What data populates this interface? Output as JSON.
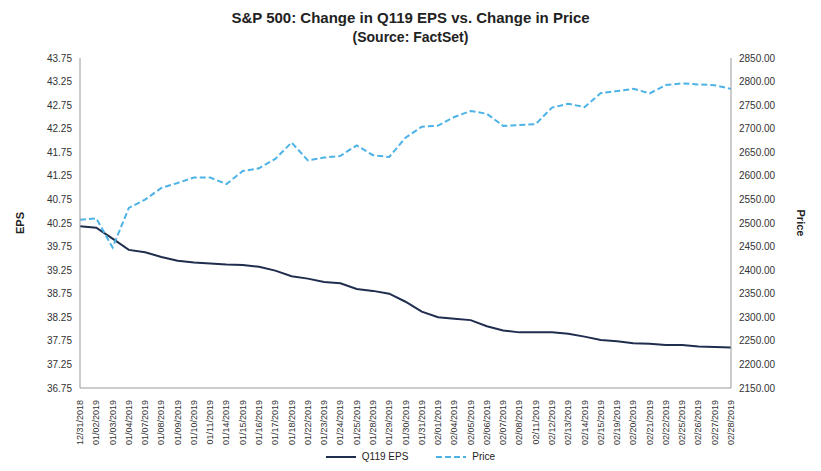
{
  "chart_data": {
    "type": "line",
    "title": "S&P 500: Change in Q119 EPS vs. Change in Price",
    "subtitle": "(Source: FactSet)",
    "y_label": "EPS",
    "y2_label": "Price",
    "x": [
      "12/31/2018",
      "01/02/2019",
      "01/03/2019",
      "01/04/2019",
      "01/07/2019",
      "01/08/2019",
      "01/09/2019",
      "01/10/2019",
      "01/11/2019",
      "01/14/2019",
      "01/15/2019",
      "01/16/2019",
      "01/17/2019",
      "01/18/2019",
      "01/22/2019",
      "01/23/2019",
      "01/24/2019",
      "01/25/2019",
      "01/28/2019",
      "01/29/2019",
      "01/30/2019",
      "01/31/2019",
      "02/01/2019",
      "02/04/2019",
      "02/05/2019",
      "02/06/2019",
      "02/07/2019",
      "02/08/2019",
      "02/11/2019",
      "02/12/2019",
      "02/13/2019",
      "02/14/2019",
      "02/15/2019",
      "02/19/2019",
      "02/20/2019",
      "02/21/2019",
      "02/22/2019",
      "02/25/2019",
      "02/26/2019",
      "02/27/2019",
      "02/28/2019"
    ],
    "series": [
      {
        "name": "Q119 EPS",
        "color": "#1f2d4e",
        "line_style": "solid",
        "axis": "y",
        "values": [
          40.18,
          40.15,
          39.92,
          39.68,
          39.63,
          39.53,
          39.45,
          39.41,
          39.39,
          39.37,
          39.36,
          39.32,
          39.24,
          39.12,
          39.07,
          39.0,
          38.97,
          38.85,
          38.81,
          38.75,
          38.58,
          38.37,
          38.25,
          38.22,
          38.19,
          38.06,
          37.97,
          37.93,
          37.93,
          37.93,
          37.9,
          37.84,
          37.77,
          37.74,
          37.7,
          37.69,
          37.66,
          37.66,
          37.63,
          37.62,
          37.61
        ]
      },
      {
        "name": "Price",
        "color": "#4db3e6",
        "line_style": "dashed",
        "axis": "y2",
        "values": [
          2506.85,
          2510.03,
          2447.89,
          2531.94,
          2549.69,
          2574.41,
          2584.96,
          2596.64,
          2596.26,
          2582.61,
          2610.3,
          2616.1,
          2635.96,
          2670.71,
          2632.9,
          2638.7,
          2642.33,
          2664.76,
          2643.85,
          2640.0,
          2681.05,
          2704.1,
          2706.53,
          2724.87,
          2737.7,
          2731.61,
          2706.05,
          2707.88,
          2709.8,
          2744.73,
          2753.03,
          2745.73,
          2775.6,
          2779.76,
          2784.7,
          2774.88,
          2792.67,
          2796.11,
          2793.9,
          2792.38,
          2784.49
        ]
      }
    ],
    "ylim": [
      36.75,
      43.75
    ],
    "yticks": [
      36.75,
      37.25,
      37.75,
      38.25,
      38.75,
      39.25,
      39.75,
      40.25,
      40.75,
      41.25,
      41.75,
      42.25,
      42.75,
      43.25,
      43.75
    ],
    "y2lim": [
      2150,
      2850
    ],
    "y2ticks": [
      {
        "value": 2150,
        "label": "2150.00"
      },
      {
        "value": 2200,
        "label": "2200.00"
      },
      {
        "value": 2250,
        "label": "2250.00"
      },
      {
        "value": 2300,
        "label": "2300.00"
      },
      {
        "value": 2350,
        "label": "2350.00"
      },
      {
        "value": 2400,
        "label": "2400.00"
      },
      {
        "value": 2450,
        "label": "2450.00"
      },
      {
        "value": 2500,
        "label": "2500.00"
      },
      {
        "value": 2550,
        "label": "2550.00"
      },
      {
        "value": 2600,
        "label": "2600.00"
      },
      {
        "value": 2650,
        "label": "2650.00"
      },
      {
        "value": 2700,
        "label": "2700.00"
      },
      {
        "value": 2750,
        "label": "2750.00"
      },
      {
        "value": 2800,
        "label": "2800.00"
      },
      {
        "value": 2850,
        "label": "2850.00"
      }
    ],
    "grid": false,
    "legend": "bottom"
  }
}
